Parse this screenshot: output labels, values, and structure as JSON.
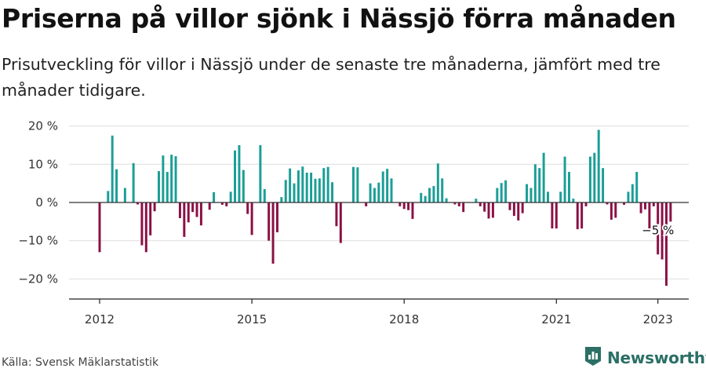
{
  "title": "Priserna på villor sjönk i Nässjö förra månaden",
  "subtitle": "Prisutveckling för villor i Nässjö under de senaste tre månaderna, jämfört med tre månader tidigare.",
  "source": "Källa: Svensk Mäklarstatistik",
  "brand": {
    "name": "Newsworthy",
    "icon": "newsworthy-logo-icon"
  },
  "colors": {
    "positive": "#1a9e96",
    "negative": "#8c0f45",
    "grid": "#dddddd",
    "axis": "#222222"
  },
  "chart_data": {
    "type": "bar",
    "title": "",
    "xlabel": "",
    "ylabel": "",
    "ylim": [
      -25,
      22
    ],
    "y_ticks": [
      {
        "value": 20,
        "label": "20 %"
      },
      {
        "value": 10,
        "label": "10 %"
      },
      {
        "value": 0,
        "label": "0 %"
      },
      {
        "value": -10,
        "label": "−10 %"
      },
      {
        "value": -20,
        "label": "−20 %"
      }
    ],
    "x_ticks": [
      {
        "value": 2012,
        "label": "2012"
      },
      {
        "value": 2015,
        "label": "2015"
      },
      {
        "value": 2018,
        "label": "2018"
      },
      {
        "value": 2021,
        "label": "2021"
      },
      {
        "value": 2023,
        "label": "2023"
      }
    ],
    "grid": true,
    "annotation": {
      "text": "−5 %",
      "x": 2023.0,
      "y": -5
    },
    "series": [
      {
        "x_start": 2012.0,
        "x_step": 0.08333,
        "values": [
          -13,
          0,
          3,
          17.5,
          8.7,
          0,
          3.8,
          0,
          10.3,
          -0.5,
          -11.2,
          -13,
          -8.6,
          -2.3,
          8.2,
          12.3,
          8,
          12.5,
          12.1,
          -4.1,
          -9,
          -5.2,
          -2.5,
          -3.8,
          -6,
          0,
          -1.9,
          2.7,
          0,
          -0.6,
          -1,
          2.8,
          13.6,
          15,
          8.5,
          -3,
          -8.5,
          0,
          15,
          3.5,
          -10,
          -16,
          -7.8,
          1.4,
          5.9,
          8.9,
          5,
          8.4,
          9.4,
          7.8,
          7.8,
          6.2,
          6.3,
          9,
          9.3,
          5.3,
          -6.2,
          -10.6,
          0,
          0,
          9.3,
          9.2,
          0,
          -1,
          5,
          3.8,
          5.2,
          8.1,
          8.8,
          6.3,
          0,
          -1,
          -1.7,
          -2,
          -4.3,
          0,
          2.5,
          1.7,
          3.8,
          4.3,
          10.2,
          6.3,
          1.1,
          0,
          -0.5,
          -1,
          -2.5,
          0,
          0,
          1,
          -1,
          -2.4,
          -4.2,
          -4,
          3.8,
          5.1,
          5.8,
          -2,
          -3.5,
          -4.7,
          -2.8,
          4.8,
          3.8,
          10,
          9,
          13,
          2.8,
          -6.8,
          -6.8,
          2.8,
          12,
          8,
          1,
          -7,
          -6.8,
          -1,
          12,
          13,
          19,
          9,
          -0.5,
          -4.5,
          -4,
          0,
          -0.6,
          2.8,
          4.8,
          8,
          -2.8,
          -1.8,
          -6.8,
          -1,
          -13.6,
          -14.9,
          -21.8,
          -5
        ]
      }
    ]
  }
}
